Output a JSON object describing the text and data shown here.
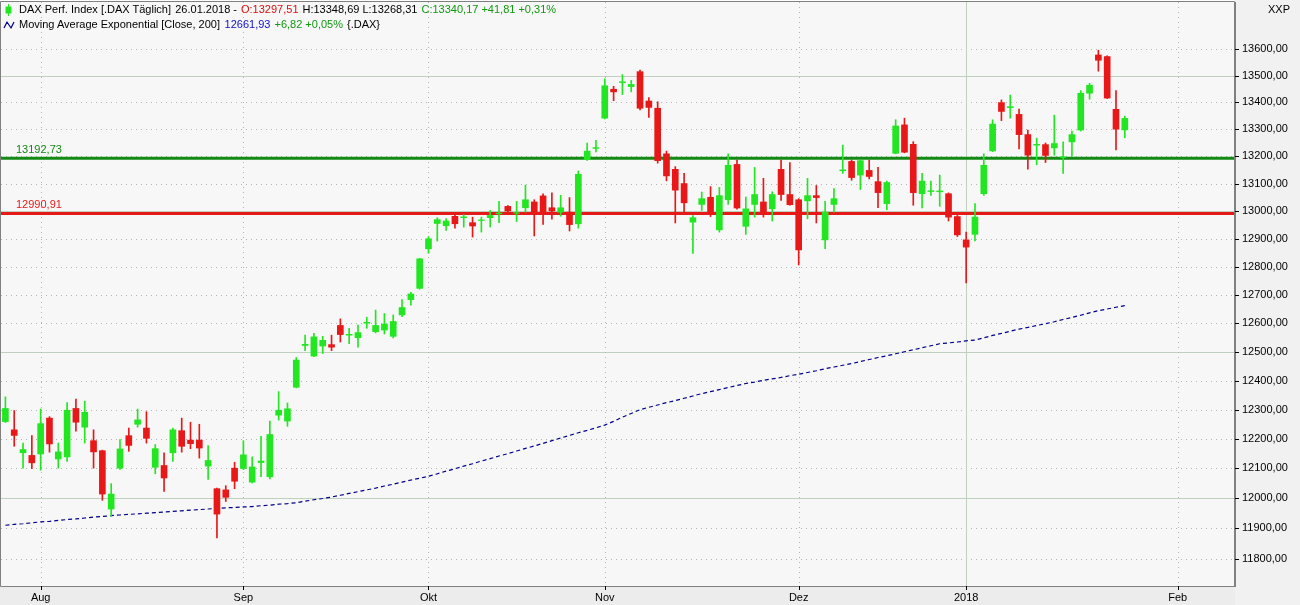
{
  "chart_data": {
    "type": "candlestick",
    "categories": [
      null,
      null,
      null,
      null,
      "Aug",
      null,
      null,
      null,
      null,
      null,
      null,
      null,
      null,
      null,
      null,
      null,
      null,
      null,
      null,
      null,
      null,
      null,
      null,
      null,
      null,
      null,
      null,
      "Sep",
      null,
      null,
      null,
      null,
      null,
      null,
      null,
      null,
      null,
      null,
      null,
      null,
      null,
      null,
      null,
      null,
      null,
      null,
      null,
      null,
      "Okt",
      null,
      null,
      null,
      null,
      null,
      null,
      null,
      null,
      null,
      null,
      null,
      null,
      null,
      null,
      null,
      null,
      null,
      null,
      null,
      "Nov",
      null,
      null,
      null,
      null,
      null,
      null,
      null,
      null,
      null,
      null,
      null,
      null,
      null,
      null,
      null,
      null,
      null,
      null,
      null,
      null,
      null,
      "Dez",
      null,
      null,
      null,
      null,
      null,
      null,
      null,
      null,
      null,
      null,
      null,
      null,
      null,
      null,
      null,
      null,
      null,
      null,
      "2018",
      null,
      null,
      null,
      null,
      null,
      null,
      null,
      null,
      null,
      null,
      null,
      null,
      null,
      null,
      null,
      null,
      null,
      null,
      null,
      null,
      null,
      null,
      null,
      "Feb",
      null,
      null,
      null,
      null,
      null,
      null
    ],
    "series": [
      {
        "name": "DAX Perf. Index [.DAX Täglich]",
        "color": "#22e622",
        "colors": [
          "#22e622",
          "#e81818",
          "#22e622",
          "#e81818",
          "#22e622",
          "#e81818",
          "#22e622",
          "#22e622",
          "#e81818",
          "#22e622",
          "#e81818",
          "#e81818",
          "#22e622",
          "#22e622",
          "#e81818",
          "#22e622",
          "#e81818",
          "#22e622",
          "#e81818",
          "#22e622",
          "#e81818",
          "#e81818",
          "#e81818",
          "#22e622",
          "#e81818",
          "#e81818",
          "#e81818",
          "#22e622",
          "#22e622",
          "#22e622",
          "#22e622",
          "#22e622",
          "#22e622",
          "#22e622",
          "#22e622",
          "#22e622",
          "#22e622",
          "#e81818",
          "#e81818",
          "#22e622",
          "#22e622",
          "#22e622",
          "#22e622",
          "#22e622",
          "#22e622",
          "#22e622",
          "#22e622",
          "#22e622",
          "#22e622",
          "#22e622",
          "#22e622",
          "#e81818",
          "#22e622",
          "#e81818",
          "#22e622",
          "#22e622",
          "#22e622",
          "#e81818",
          "#22e622",
          "#22e622",
          "#e81818",
          "#e81818",
          "#e81818",
          "#22e622",
          "#e81818",
          "#22e622",
          "#22e622",
          "#22e622",
          "#22e622",
          "#e81818",
          "#22e622",
          "#22e622",
          "#e81818",
          "#e81818",
          "#e81818",
          "#e81818",
          "#e81818",
          "#e81818",
          "#22e622",
          "#22e622",
          "#e81818",
          "#22e622",
          "#22e622",
          "#e81818",
          "#22e622",
          "#22e622",
          "#e81818",
          "#22e622",
          "#e81818",
          "#e81818",
          "#e81818",
          "#22e622",
          "#e81818",
          "#22e622",
          "#22e622",
          "#22e622",
          "#e81818",
          "#22e622",
          "#e81818",
          "#e81818",
          "#22e622",
          "#22e622",
          "#e81818",
          "#e81818",
          "#22e622",
          "#22e622",
          "#22e622",
          "#e81818",
          "#e81818",
          "#e81818",
          "#22e622",
          "#22e622",
          "#22e622",
          "#e81818",
          "#22e622",
          "#e81818",
          "#e81818",
          "#22e622",
          "#e81818",
          "#22e622",
          "#22e622",
          "#22e622",
          "#22e622",
          "#22e622",
          "#e81818",
          "#e81818",
          "#e81818",
          "#22e622",
          null,
          null,
          null,
          null,
          null,
          null,
          null,
          null,
          null,
          null,
          null,
          null
        ],
        "ohlc": [
          [
            12259,
            12344,
            12256,
            12304
          ],
          [
            12231,
            12297,
            12175,
            12212
          ],
          [
            12153,
            12186,
            12101,
            12164
          ],
          [
            12144,
            12211,
            12099,
            12119
          ],
          [
            12149,
            12302,
            12094,
            12252
          ],
          [
            12271,
            12276,
            12155,
            12183
          ],
          [
            12132,
            12186,
            12101,
            12156
          ],
          [
            12139,
            12324,
            12124,
            12298
          ],
          [
            12304,
            12336,
            12226,
            12257
          ],
          [
            12240,
            12329,
            12186,
            12291
          ],
          [
            12194,
            12231,
            12101,
            12156
          ],
          [
            12160,
            12162,
            11993,
            12014
          ],
          [
            11964,
            12049,
            11939,
            12014
          ],
          [
            12101,
            12198,
            12097,
            12166
          ],
          [
            12211,
            12237,
            12158,
            12178
          ],
          [
            12250,
            12302,
            12240,
            12265
          ],
          [
            12237,
            12293,
            12186,
            12202
          ],
          [
            12104,
            12181,
            12082,
            12167
          ],
          [
            12110,
            12153,
            12023,
            12068
          ],
          [
            12153,
            12237,
            12124,
            12231
          ],
          [
            12228,
            12271,
            12155,
            12175
          ],
          [
            12196,
            12257,
            12167,
            12184
          ],
          [
            12196,
            12250,
            12135,
            12169
          ],
          [
            12108,
            12177,
            12063,
            12127
          ],
          [
            12032,
            12034,
            11868,
            11947
          ],
          [
            12028,
            12042,
            11989,
            12003
          ],
          [
            12101,
            12121,
            12032,
            12057
          ],
          [
            12100,
            12194,
            12096,
            12146
          ],
          [
            12054,
            12139,
            12051,
            12105
          ],
          [
            12120,
            12209,
            12072,
            12125
          ],
          [
            12072,
            12261,
            12065,
            12215
          ],
          [
            12281,
            12362,
            12264,
            12298
          ],
          [
            12261,
            12323,
            12243,
            12303
          ],
          [
            12377,
            12480,
            12375,
            12471
          ],
          [
            12522,
            12558,
            12504,
            12526
          ],
          [
            12485,
            12564,
            12483,
            12552
          ],
          [
            12520,
            12554,
            12494,
            12540
          ],
          [
            12525,
            12558,
            12504,
            12516
          ],
          [
            12592,
            12615,
            12534,
            12560
          ],
          [
            12558,
            12582,
            12528,
            12561
          ],
          [
            12549,
            12593,
            12516,
            12567
          ],
          [
            12600,
            12621,
            12582,
            12603
          ],
          [
            12570,
            12646,
            12566,
            12592
          ],
          [
            12576,
            12634,
            12562,
            12597
          ],
          [
            12554,
            12629,
            12548,
            12606
          ],
          [
            12629,
            12683,
            12623,
            12655
          ],
          [
            12683,
            12709,
            12663,
            12703
          ],
          [
            12723,
            12830,
            12720,
            12828
          ],
          [
            12864,
            12908,
            12848,
            12900
          ],
          [
            12955,
            12976,
            12892,
            12969
          ],
          [
            12947,
            12973,
            12930,
            12964
          ],
          [
            12981,
            12987,
            12938,
            12954
          ],
          [
            12976,
            12987,
            12942,
            12979
          ],
          [
            12958,
            12978,
            12906,
            12946
          ],
          [
            12966,
            12978,
            12924,
            12968
          ],
          [
            12976,
            13002,
            12942,
            12984
          ],
          [
            12990,
            13035,
            12958,
            12993
          ],
          [
            13017,
            13020,
            12993,
            13000
          ],
          [
            12992,
            13035,
            12962,
            12994
          ],
          [
            13012,
            13094,
            12996,
            13041
          ],
          [
            13033,
            13041,
            12910,
            12991
          ],
          [
            13055,
            13063,
            12952,
            12991
          ],
          [
            13012,
            13066,
            12971,
            13000
          ],
          [
            12996,
            13057,
            12981,
            13012
          ],
          [
            12996,
            13049,
            12928,
            12951
          ],
          [
            12954,
            13146,
            12938,
            13134
          ],
          [
            13188,
            13249,
            13185,
            13219
          ],
          [
            13229,
            13259,
            13216,
            13232
          ],
          [
            13341,
            13488,
            13338,
            13462
          ],
          [
            13449,
            13460,
            13406,
            13439
          ],
          [
            13474,
            13504,
            13429,
            13477
          ],
          [
            13459,
            13482,
            13439,
            13467
          ],
          [
            13515,
            13521,
            13372,
            13378
          ],
          [
            13405,
            13418,
            13344,
            13381
          ],
          [
            13378,
            13402,
            13175,
            13184
          ],
          [
            13209,
            13219,
            13110,
            13128
          ],
          [
            13152,
            13162,
            12957,
            13076
          ],
          [
            13100,
            13137,
            12996,
            13030
          ],
          [
            12960,
            12984,
            12847,
            12976
          ],
          [
            13024,
            13069,
            13002,
            13045
          ],
          [
            13050,
            13089,
            12980,
            12988
          ],
          [
            12932,
            13086,
            12924,
            13056
          ],
          [
            13041,
            13209,
            13024,
            13167
          ],
          [
            13170,
            13186,
            13007,
            13011
          ],
          [
            12945,
            13051,
            12916,
            13008
          ],
          [
            13024,
            13159,
            12978,
            13060
          ],
          [
            13033,
            13119,
            12978,
            12996
          ],
          [
            13008,
            13070,
            12964,
            13060
          ],
          [
            13152,
            13186,
            13039,
            13060
          ],
          [
            13060,
            13177,
            13021,
            13023
          ],
          [
            13041,
            13045,
            12806,
            12860
          ],
          [
            13037,
            13119,
            12972,
            13056
          ],
          [
            13056,
            13093,
            12957,
            13049
          ],
          [
            12896,
            13035,
            12864,
            12996
          ],
          [
            13024,
            13082,
            12996,
            13045
          ],
          [
            13147,
            13241,
            13137,
            13150
          ],
          [
            13181,
            13186,
            13112,
            13122
          ],
          [
            13131,
            13186,
            13078,
            13184
          ],
          [
            13148,
            13186,
            13117,
            13126
          ],
          [
            13107,
            13159,
            13012,
            13067
          ],
          [
            13027,
            13109,
            13005,
            13104
          ],
          [
            13211,
            13335,
            13209,
            13312
          ],
          [
            13316,
            13341,
            13213,
            13215
          ],
          [
            13244,
            13254,
            13021,
            13067
          ],
          [
            13063,
            13137,
            13011,
            13109
          ],
          [
            13071,
            13109,
            13057,
            13074
          ],
          [
            13070,
            13131,
            13017,
            13073
          ],
          [
            13063,
            13066,
            12964,
            12978
          ],
          [
            12980,
            12984,
            12908,
            12914
          ],
          [
            12896,
            12924,
            12742,
            12870
          ],
          [
            12916,
            13027,
            12892,
            12978
          ],
          [
            13063,
            13209,
            13057,
            13167
          ],
          [
            13220,
            13335,
            13217,
            13319
          ],
          [
            13399,
            13409,
            13332,
            13366
          ],
          [
            13380,
            13427,
            13341,
            13384
          ],
          [
            13355,
            13375,
            13227,
            13280
          ],
          [
            13280,
            13297,
            13153,
            13204
          ],
          [
            13241,
            13267,
            13169,
            13244
          ],
          [
            13243,
            13249,
            13177,
            13203
          ],
          [
            13231,
            13352,
            13204,
            13247
          ],
          [
            13195,
            13253,
            13137,
            13198
          ],
          [
            13253,
            13293,
            13200,
            13280
          ],
          [
            13297,
            13444,
            13293,
            13434
          ],
          [
            13434,
            13471,
            13412,
            13464
          ],
          [
            13578,
            13596,
            13517,
            13558
          ],
          [
            13572,
            13575,
            13414,
            13416
          ],
          [
            13374,
            13444,
            13223,
            13300
          ],
          [
            13297.51,
            13348.69,
            13268.31,
            13340.17
          ],
          null,
          null,
          null,
          null,
          null,
          null,
          null,
          null,
          null,
          null,
          null,
          null
        ]
      },
      {
        "name": "Moving Average Exponential [Close, 200]",
        "type": "line",
        "color": "#00008b",
        "line_style": "dashed",
        "marker": "none",
        "values": [
          11910,
          11913,
          11915,
          11918,
          11921,
          11923,
          11926,
          11929,
          11931,
          11934,
          11937,
          11939,
          11942,
          11944,
          11946,
          11948,
          11950,
          11952,
          11954,
          11956,
          11958,
          11960,
          11962,
          11964,
          null,
          11968,
          11969,
          11971,
          11972,
          11975,
          11977,
          11980,
          11982,
          11985,
          11990,
          11995,
          11999,
          12004,
          12010,
          12016,
          12022,
          12028,
          12034,
          12041,
          12047,
          12054,
          12061,
          12067,
          12074,
          12082,
          12091,
          12099,
          12108,
          12116,
          12125,
          12133,
          12142,
          12150,
          12159,
          12168,
          12176,
          12185,
          12194,
          12203,
          12212,
          12221,
          12229,
          12238,
          12247,
          12260,
          12274,
          12287,
          12300,
          12308,
          12316,
          12324,
          12331,
          12339,
          12347,
          12355,
          12362,
          12369,
          12376,
          12383,
          12390,
          12395,
          12401,
          12406,
          12411,
          12417,
          12422,
          12428,
          12434,
          12441,
          12447,
          12453,
          12459,
          12466,
          12473,
          12480,
          12486,
          12493,
          12500,
          12507,
          12514,
          12521,
          12528,
          12531,
          12534,
          12538,
          12541,
          12549,
          12557,
          12564,
          12572,
          12579,
          12585,
          12592,
          12598,
          12605,
          12613,
          12620,
          12628,
          12636,
          12644,
          12650,
          12656,
          12661.93,
          null,
          null,
          null,
          null,
          null,
          null,
          null,
          null,
          null,
          null,
          null,
          null
        ]
      }
    ],
    "log": true,
    "ylim": [
      11710,
      13780
    ],
    "yticks": [
      {
        "value": 11800,
        "label": "11800,00"
      },
      {
        "value": 11900,
        "label": "11900,00"
      },
      {
        "value": 12000,
        "label": "12000,00"
      },
      {
        "value": 12100,
        "label": "12100,00"
      },
      {
        "value": 12200,
        "label": "12200,00"
      },
      {
        "value": 12300,
        "label": "12300,00"
      },
      {
        "value": 12400,
        "label": "12400,00"
      },
      {
        "value": 12500,
        "label": "12500,00"
      },
      {
        "value": 12600,
        "label": "12600,00"
      },
      {
        "value": 12700,
        "label": "12700,00"
      },
      {
        "value": 12800,
        "label": "12800,00"
      },
      {
        "value": 12900,
        "label": "12900,00"
      },
      {
        "value": 13000,
        "label": "13000,00"
      },
      {
        "value": 13100,
        "label": "13100,00"
      },
      {
        "value": 13200,
        "label": "13200,00"
      },
      {
        "value": 13300,
        "label": "13300,00"
      },
      {
        "value": 13400,
        "label": "13400,00"
      },
      {
        "value": 13500,
        "label": "13500,00"
      },
      {
        "value": 13600,
        "label": "13600,00"
      }
    ],
    "grid": true,
    "legend": "top left",
    "ref_lines": [
      {
        "axis": "y",
        "value": 13192.73,
        "label": "13192,73",
        "color": "#138a13"
      },
      {
        "axis": "y",
        "value": 12990.91,
        "label": "12990,91",
        "color": "#e61919"
      }
    ],
    "annotations": [
      "26.01.2018 -",
      "O:13297,51",
      "H:13348,69 L:13268,31",
      "C:13340,17 +41,81 +0,31%",
      "12661,93",
      "+6,82 +0,05%",
      "{.DAX}",
      "XXP"
    ]
  }
}
